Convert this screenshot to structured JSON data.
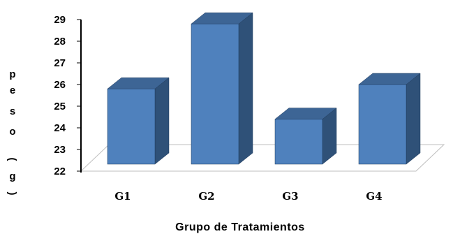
{
  "chart_data": {
    "type": "bar",
    "style": "3d-column",
    "categories": [
      "G1",
      "G2",
      "G3",
      "G4"
    ],
    "values": [
      25.8,
      28.8,
      24.4,
      26.0
    ],
    "xlabel": "Grupo de Tratamientos",
    "ylabel_chars": [
      "p",
      "e",
      "s",
      "o",
      "(",
      "g",
      ")"
    ],
    "ylim": [
      22,
      29
    ],
    "yticks": [
      "22",
      "23",
      "24",
      "25",
      "26",
      "27",
      "28",
      "29"
    ],
    "grid": false,
    "legend": "none",
    "colors": {
      "front": "#4f81bd",
      "side": "#2f5178",
      "top": "#3d6595",
      "edge": "#1f3a5c"
    }
  }
}
